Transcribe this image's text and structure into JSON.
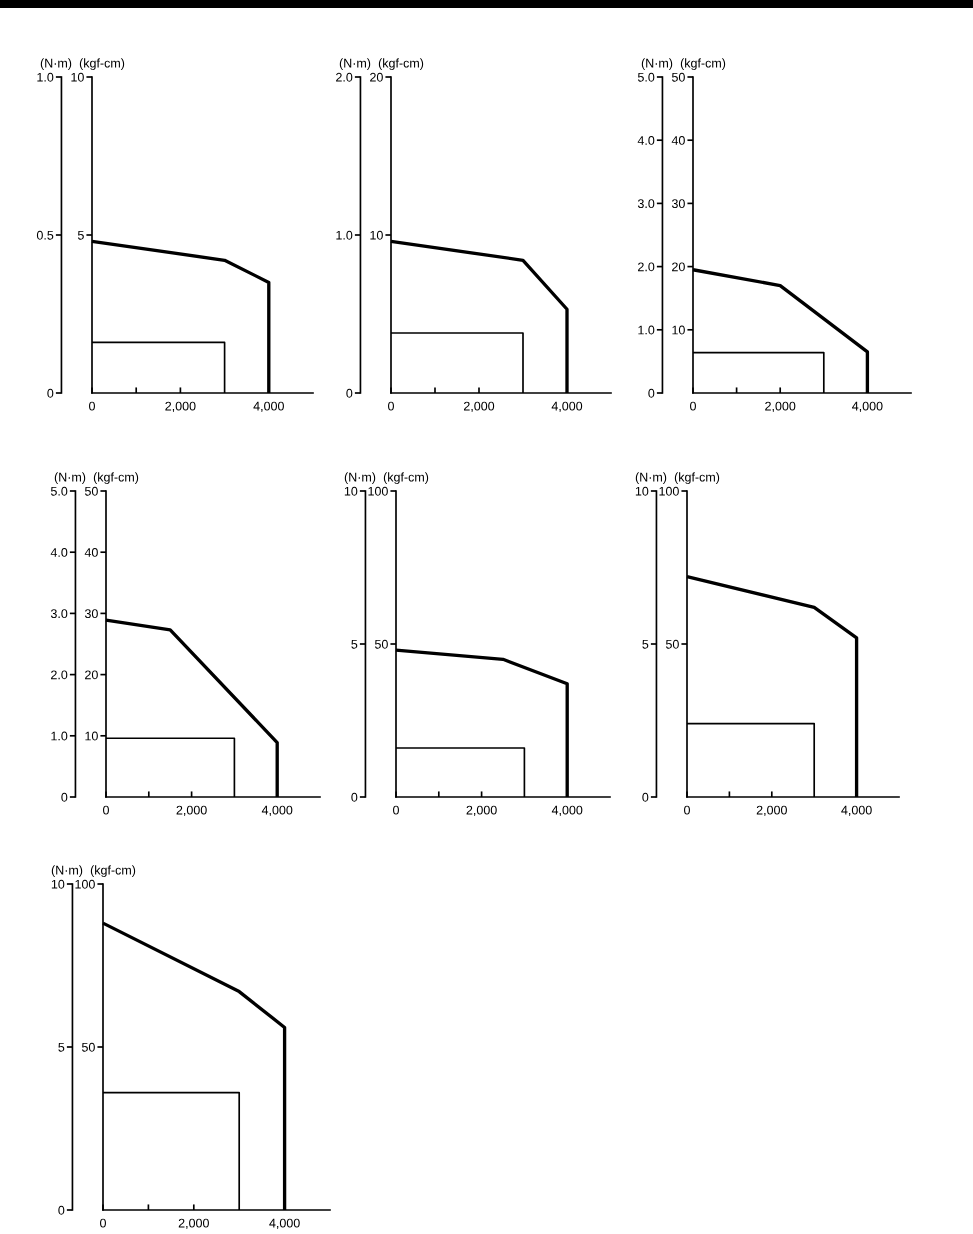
{
  "chart_data": [
    {
      "type": "line",
      "ylabel": "(N·m)",
      "y2label": "(kgf-cm)",
      "xlim": [
        0,
        5000
      ],
      "xticks": [
        0,
        {
          "value": 1000,
          "label": null
        },
        {
          "value": 2000,
          "label": "2,000"
        },
        {
          "value": 4000,
          "label": "4,000"
        }
      ],
      "ylim": [
        0,
        1
      ],
      "yticks": [
        0,
        0.5,
        {
          "value": 1,
          "label": "1.0"
        }
      ],
      "y2lim": [
        0,
        10
      ],
      "y2ticks": [
        5,
        10
      ],
      "series": [
        {
          "axis": "y2",
          "color": "#000000",
          "x": [
            0,
            3000,
            4000,
            4000
          ],
          "values": [
            4.8,
            4.2,
            3.5,
            0
          ]
        },
        {
          "axis": "y2",
          "color": "#000000",
          "x": [
            0,
            3000,
            3000
          ],
          "values": [
            1.6,
            1.6,
            0
          ]
        }
      ]
    },
    {
      "type": "line",
      "ylabel": "(N·m)",
      "y2label": "(kgf-cm)",
      "xlim": [
        0,
        5000
      ],
      "xticks": [
        0,
        {
          "value": 1000,
          "label": null
        },
        {
          "value": 2000,
          "label": "2,000"
        },
        {
          "value": 4000,
          "label": "4,000"
        }
      ],
      "ylim": [
        0,
        2
      ],
      "yticks": [
        0,
        {
          "value": 1,
          "label": "1.0"
        },
        {
          "value": 2,
          "label": "2.0"
        }
      ],
      "y2lim": [
        0,
        20
      ],
      "y2ticks": [
        10,
        20
      ],
      "series": [
        {
          "axis": "y2",
          "color": "#000000",
          "x": [
            0,
            3000,
            4000,
            4000
          ],
          "values": [
            9.6,
            8.4,
            5.3,
            0
          ]
        },
        {
          "axis": "y2",
          "color": "#000000",
          "x": [
            0,
            3000,
            3000
          ],
          "values": [
            3.8,
            3.8,
            0
          ]
        }
      ]
    },
    {
      "type": "line",
      "ylabel": "(N·m)",
      "y2label": "(kgf-cm)",
      "xlim": [
        0,
        5000
      ],
      "xticks": [
        0,
        {
          "value": 1000,
          "label": null
        },
        {
          "value": 2000,
          "label": "2,000"
        },
        {
          "value": 4000,
          "label": "4,000"
        }
      ],
      "ylim": [
        0,
        5
      ],
      "yticks": [
        0,
        {
          "value": 1,
          "label": "1.0"
        },
        {
          "value": 2,
          "label": "2.0"
        },
        {
          "value": 3,
          "label": "3.0"
        },
        {
          "value": 4,
          "label": "4.0"
        },
        {
          "value": 5,
          "label": "5.0"
        }
      ],
      "y2lim": [
        0,
        50
      ],
      "y2ticks": [
        10,
        20,
        30,
        40,
        50
      ],
      "series": [
        {
          "axis": "y2",
          "color": "#000000",
          "x": [
            0,
            2000,
            4000,
            4000
          ],
          "values": [
            19.5,
            17,
            6.5,
            0
          ]
        },
        {
          "axis": "y2",
          "color": "#000000",
          "x": [
            0,
            3000,
            3000
          ],
          "values": [
            6.4,
            6.4,
            0
          ]
        }
      ]
    },
    {
      "type": "line",
      "ylabel": "(N·m)",
      "y2label": "(kgf-cm)",
      "xlim": [
        0,
        5000
      ],
      "xticks": [
        0,
        {
          "value": 1000,
          "label": null
        },
        {
          "value": 2000,
          "label": "2,000"
        },
        {
          "value": 4000,
          "label": "4,000"
        }
      ],
      "ylim": [
        0,
        5
      ],
      "yticks": [
        0,
        {
          "value": 1,
          "label": "1.0"
        },
        {
          "value": 2,
          "label": "2.0"
        },
        {
          "value": 3,
          "label": "3.0"
        },
        {
          "value": 4,
          "label": "4.0"
        },
        {
          "value": 5,
          "label": "5.0"
        }
      ],
      "y2lim": [
        0,
        50
      ],
      "y2ticks": [
        10,
        20,
        30,
        40,
        50
      ],
      "series": [
        {
          "axis": "y2",
          "color": "#000000",
          "x": [
            0,
            1500,
            4000,
            4000
          ],
          "values": [
            28.9,
            27.3,
            8.9,
            0
          ]
        },
        {
          "axis": "y2",
          "color": "#000000",
          "x": [
            0,
            3000,
            3000
          ],
          "values": [
            9.6,
            9.6,
            0
          ]
        }
      ]
    },
    {
      "type": "line",
      "ylabel": "(N·m)",
      "y2label": "(kgf-cm)",
      "xlim": [
        0,
        5000
      ],
      "xticks": [
        0,
        {
          "value": 1000,
          "label": null
        },
        {
          "value": 2000,
          "label": "2,000"
        },
        {
          "value": 4000,
          "label": "4,000"
        }
      ],
      "ylim": [
        0,
        10
      ],
      "yticks": [
        0,
        5,
        10
      ],
      "y2lim": [
        0,
        100
      ],
      "y2ticks": [
        50,
        100
      ],
      "series": [
        {
          "axis": "y2",
          "color": "#000000",
          "x": [
            0,
            2500,
            4000,
            4000
          ],
          "values": [
            48,
            45,
            37,
            0
          ]
        },
        {
          "axis": "y2",
          "color": "#000000",
          "x": [
            0,
            3000,
            3000
          ],
          "values": [
            16,
            16,
            0
          ]
        }
      ]
    },
    {
      "type": "line",
      "ylabel": "(N·m)",
      "y2label": "(kgf-cm)",
      "xlim": [
        0,
        5000
      ],
      "xticks": [
        0,
        {
          "value": 1000,
          "label": null
        },
        {
          "value": 2000,
          "label": "2,000"
        },
        {
          "value": 4000,
          "label": "4,000"
        }
      ],
      "ylim": [
        0,
        10
      ],
      "yticks": [
        0,
        5,
        10
      ],
      "y2lim": [
        0,
        100
      ],
      "y2ticks": [
        50,
        100
      ],
      "series": [
        {
          "axis": "y2",
          "color": "#000000",
          "x": [
            0,
            3000,
            4000,
            4000
          ],
          "values": [
            72,
            62,
            52,
            0
          ]
        },
        {
          "axis": "y2",
          "color": "#000000",
          "x": [
            0,
            3000,
            3000
          ],
          "values": [
            24,
            24,
            0
          ]
        }
      ]
    },
    {
      "type": "line",
      "ylabel": "(N·m)",
      "y2label": "(kgf-cm)",
      "xlim": [
        0,
        5000
      ],
      "xticks": [
        0,
        {
          "value": 1000,
          "label": null
        },
        {
          "value": 2000,
          "label": "2,000"
        },
        {
          "value": 4000,
          "label": "4,000"
        }
      ],
      "ylim": [
        0,
        10
      ],
      "yticks": [
        0,
        5,
        10
      ],
      "y2lim": [
        0,
        100
      ],
      "y2ticks": [
        50,
        100
      ],
      "series": [
        {
          "axis": "y2",
          "color": "#000000",
          "x": [
            0,
            3000,
            4000,
            4000
          ],
          "values": [
            88,
            67,
            56,
            0
          ]
        },
        {
          "axis": "y2",
          "color": "#000000",
          "x": [
            0,
            3000,
            3000
          ],
          "values": [
            36,
            36,
            0
          ]
        }
      ]
    }
  ]
}
